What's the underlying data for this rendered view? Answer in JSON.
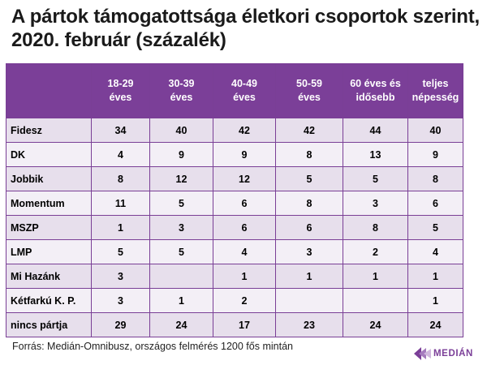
{
  "title": "A pártok támogatottsága életkori csoportok szerint, 2020. február (százalék)",
  "table": {
    "columns": [
      "",
      "18-29\néves",
      "30-39\néves",
      "40-49\néves",
      "50-59\néves",
      "60 éves és\nidősebb",
      "teljes\nnépesség"
    ],
    "rows": [
      {
        "party": "Fidesz",
        "values": [
          "34",
          "40",
          "42",
          "42",
          "44",
          "40"
        ]
      },
      {
        "party": "DK",
        "values": [
          "4",
          "9",
          "9",
          "8",
          "13",
          "9"
        ]
      },
      {
        "party": "Jobbik",
        "values": [
          "8",
          "12",
          "12",
          "5",
          "5",
          "8"
        ]
      },
      {
        "party": "Momentum",
        "values": [
          "11",
          "5",
          "6",
          "8",
          "3",
          "6"
        ]
      },
      {
        "party": "MSZP",
        "values": [
          "1",
          "3",
          "6",
          "6",
          "8",
          "5"
        ]
      },
      {
        "party": "LMP",
        "values": [
          "5",
          "5",
          "4",
          "3",
          "2",
          "4"
        ]
      },
      {
        "party": "Mi Hazánk",
        "values": [
          "3",
          "",
          "1",
          "1",
          "1",
          "1"
        ]
      },
      {
        "party": "Kétfarkú K. P.",
        "values": [
          "3",
          "1",
          "2",
          "",
          "",
          "1"
        ]
      },
      {
        "party": "nincs pártja",
        "values": [
          "29",
          "24",
          "17",
          "23",
          "24",
          "24"
        ]
      }
    ]
  },
  "source": "Forrás: Medián-Omnibusz, országos felmérés 1200 fős mintán",
  "logo": {
    "text": "MEDIÁN",
    "icon": "median-logo-icon"
  },
  "colors": {
    "header_bg": "#7b3f98",
    "row_dark": "#e7dfec",
    "row_light": "#f3eff6",
    "logo": "#7b3f98"
  }
}
